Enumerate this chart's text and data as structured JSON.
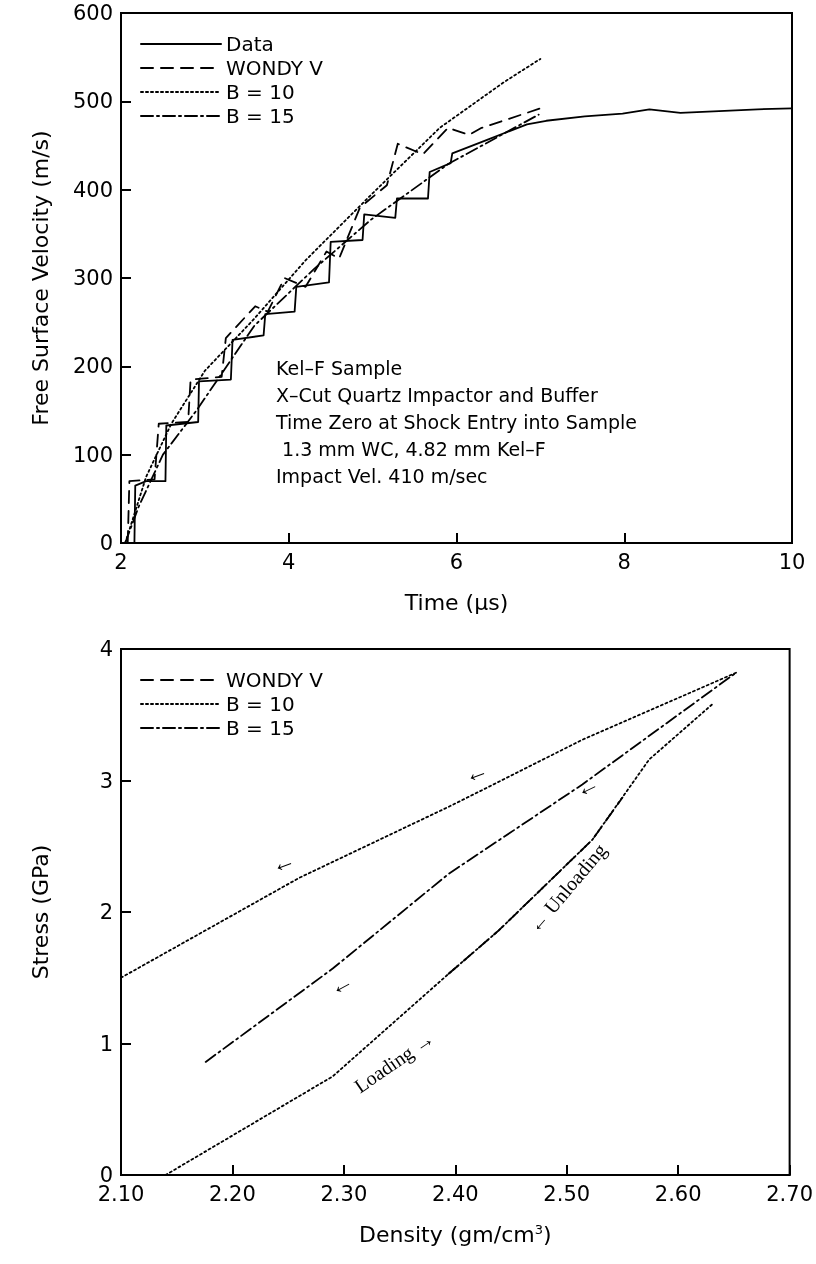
{
  "chart_data": [
    {
      "type": "line",
      "xlabel": "Time (μs)",
      "ylabel": "Free Surface Velocity (m/s)",
      "xlim": [
        2,
        10
      ],
      "ylim": [
        0,
        600
      ],
      "xticks": [
        2,
        4,
        6,
        8,
        10
      ],
      "yticks": [
        0,
        100,
        200,
        300,
        400,
        500,
        600
      ],
      "grid": false,
      "legend": "top left",
      "marker": "none",
      "annotations": [
        "Kel–F Sample",
        "X–Cut Quartz Impactor and Buffer",
        "Time Zero at Shock Entry into Sample",
        " 1.3 mm WC, 4.82 mm Kel–F",
        "Impact Vel. 410 m/sec"
      ],
      "series": [
        {
          "name": "Data",
          "color": "#000000",
          "line_style": "solid",
          "x": [
            2.0,
            2.16,
            2.17,
            2.3,
            2.53,
            2.54,
            2.92,
            2.93,
            3.31,
            3.33,
            3.7,
            3.72,
            4.07,
            4.09,
            4.48,
            4.5,
            4.88,
            4.9,
            5.27,
            5.29,
            5.66,
            5.68,
            5.93,
            5.95,
            6.38,
            6.84,
            7.07,
            7.53,
            7.98,
            8.3,
            8.67,
            9.13,
            9.59,
            10.0
          ],
          "values": [
            0,
            0,
            65,
            70,
            70,
            133,
            137,
            183,
            185,
            230,
            235,
            259,
            262,
            290,
            295,
            341,
            343,
            372,
            368,
            390,
            390,
            420,
            430,
            441,
            457,
            474,
            478,
            483,
            486,
            491,
            487,
            489,
            491,
            492
          ]
        },
        {
          "name": "WONDY V",
          "color": "#000000",
          "line_style": "dashed",
          "x": [
            2.08,
            2.1,
            2.4,
            2.45,
            2.8,
            2.83,
            3.2,
            3.25,
            3.6,
            3.75,
            3.95,
            4.2,
            4.45,
            4.6,
            4.85,
            5.17,
            5.3,
            5.6,
            5.9,
            6.15,
            6.3,
            7.0
          ],
          "values": [
            0,
            70,
            72,
            135,
            137,
            185,
            188,
            232,
            268,
            262,
            300,
            290,
            330,
            322,
            380,
            405,
            452,
            440,
            470,
            462,
            470,
            492
          ]
        },
        {
          "name": "B = 10",
          "color": "#000000",
          "line_style": "dotted",
          "x": [
            2.05,
            2.3,
            2.6,
            3.0,
            3.59,
            4.2,
            4.98,
            5.8,
            6.57,
            7.0
          ],
          "values": [
            0,
            75,
            135,
            195,
            254,
            320,
            394,
            470,
            522,
            548
          ]
        },
        {
          "name": "B = 15",
          "color": "#000000",
          "line_style": "dashdot",
          "x": [
            2.05,
            2.21,
            2.5,
            2.9,
            3.59,
            4.3,
            4.98,
            5.9,
            6.98
          ],
          "values": [
            0,
            41,
            100,
            150,
            246,
            310,
            366,
            429,
            485
          ]
        }
      ]
    },
    {
      "type": "line",
      "xlabel": "Density (gm/cm$^{3}$)",
      "ylabel": "Stress (GPa)",
      "xlim": [
        2.1,
        2.7
      ],
      "ylim": [
        0,
        4
      ],
      "xticks": [
        {
          "value": 2.1,
          "label": "2.10"
        },
        {
          "value": 2.2,
          "label": "2.20"
        },
        {
          "value": 2.3,
          "label": "2.30"
        },
        {
          "value": 2.4,
          "label": "2.40"
        },
        {
          "value": 2.5,
          "label": "2.50"
        },
        {
          "value": 2.6,
          "label": "2.60"
        },
        {
          "value": 2.7,
          "label": "2.70"
        }
      ],
      "yticks": [
        0,
        1,
        2,
        3,
        4
      ],
      "grid": false,
      "legend": "top left",
      "marker": "none",
      "annotations": [
        "Loading →",
        "← Unloading",
        "←",
        "←",
        "←",
        "←"
      ],
      "series": [
        {
          "name": "WONDY V",
          "color": "#000000",
          "line_style": "dashed",
          "x": [
            2.394,
            2.439,
            2.523,
            2.55
          ],
          "values": [
            1.53,
            1.86,
            2.55,
            2.87
          ]
        },
        {
          "name": "B = 10",
          "color": "#000000",
          "line_style": "dotted",
          "x": [
            2.1,
            2.26,
            2.394,
            2.439,
            2.514,
            2.652
          ],
          "values": [
            1.5,
            2.26,
            2.8,
            2.99,
            3.31,
            3.82
          ]
        },
        {
          "name": "B = 15",
          "color": "#000000",
          "line_style": "dashdot",
          "x": [
            2.176,
            2.29,
            2.394,
            2.514,
            2.652
          ],
          "values": [
            0.86,
            1.57,
            2.29,
            2.97,
            3.82
          ]
        },
        {
          "color": "#000000",
          "line_style": "dotted",
          "x": [
            2.14,
            2.2,
            2.29,
            2.394,
            2.439,
            2.523,
            2.574,
            2.632
          ],
          "values": [
            0,
            0.3,
            0.75,
            1.53,
            1.86,
            2.55,
            3.16,
            3.59
          ]
        }
      ]
    }
  ]
}
